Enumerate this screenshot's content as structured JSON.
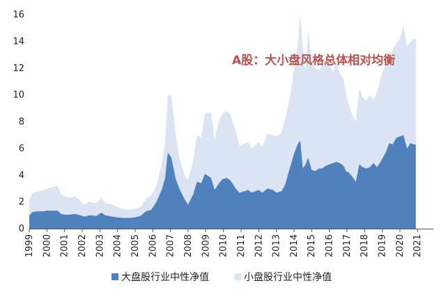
{
  "chart_data": {
    "type": "area",
    "annotation": "A股：大小盘风格总体相对均衡",
    "ylim": [
      0,
      16
    ],
    "y_ticks": [
      0,
      2,
      4,
      6,
      8,
      10,
      12,
      14,
      16
    ],
    "x_ticks": [
      "1999",
      "2000",
      "2001",
      "2002",
      "2003",
      "2004",
      "2005",
      "2006",
      "2007",
      "2008",
      "2009",
      "2010",
      "2011",
      "2012",
      "2013",
      "2014",
      "2015",
      "2016",
      "2017",
      "2018",
      "2019",
      "2020",
      "2021"
    ],
    "xlim": [
      1999.0,
      2021.9
    ],
    "grid": false,
    "legend_position": "bottom",
    "series": [
      {
        "name": "小盘股行业中性净值",
        "color": "#dbe4f2",
        "points": [
          [
            1999.0,
            2.2
          ],
          [
            1999.2,
            2.7
          ],
          [
            1999.5,
            2.8
          ],
          [
            1999.8,
            2.9
          ],
          [
            2000.0,
            3.0
          ],
          [
            2000.3,
            3.1
          ],
          [
            2000.6,
            3.2
          ],
          [
            2000.8,
            2.6
          ],
          [
            2001.0,
            2.4
          ],
          [
            2001.3,
            2.3
          ],
          [
            2001.6,
            2.4
          ],
          [
            2001.9,
            2.1
          ],
          [
            2002.1,
            1.8
          ],
          [
            2002.4,
            2.0
          ],
          [
            2002.8,
            1.9
          ],
          [
            2003.1,
            2.3
          ],
          [
            2003.3,
            1.9
          ],
          [
            2003.7,
            1.8
          ],
          [
            2004.0,
            1.6
          ],
          [
            2004.3,
            1.5
          ],
          [
            2004.6,
            1.4
          ],
          [
            2005.0,
            1.5
          ],
          [
            2005.3,
            1.6
          ],
          [
            2005.6,
            2.2
          ],
          [
            2005.9,
            2.5
          ],
          [
            2006.2,
            3.2
          ],
          [
            2006.5,
            4.8
          ],
          [
            2006.7,
            6.5
          ],
          [
            2006.85,
            10.0
          ],
          [
            2007.05,
            9.9
          ],
          [
            2007.3,
            7.0
          ],
          [
            2007.5,
            5.3
          ],
          [
            2007.8,
            4.0
          ],
          [
            2008.0,
            3.6
          ],
          [
            2008.3,
            5.2
          ],
          [
            2008.5,
            7.0
          ],
          [
            2008.75,
            6.8
          ],
          [
            2008.95,
            8.6
          ],
          [
            2009.3,
            8.7
          ],
          [
            2009.5,
            6.7
          ],
          [
            2009.75,
            8.0
          ],
          [
            2009.95,
            8.6
          ],
          [
            2010.2,
            8.8
          ],
          [
            2010.4,
            8.5
          ],
          [
            2010.7,
            7.3
          ],
          [
            2010.9,
            6.2
          ],
          [
            2011.2,
            6.4
          ],
          [
            2011.4,
            6.5
          ],
          [
            2011.6,
            6.0
          ],
          [
            2011.8,
            6.2
          ],
          [
            2012.0,
            6.5
          ],
          [
            2012.2,
            6.1
          ],
          [
            2012.5,
            7.1
          ],
          [
            2012.8,
            7.0
          ],
          [
            2013.0,
            6.9
          ],
          [
            2013.3,
            7.2
          ],
          [
            2013.5,
            8.2
          ],
          [
            2013.8,
            10.0
          ],
          [
            2014.0,
            12.0
          ],
          [
            2014.2,
            13.6
          ],
          [
            2014.35,
            16.1
          ],
          [
            2014.5,
            13.5
          ],
          [
            2014.65,
            11.8
          ],
          [
            2014.8,
            14.8
          ],
          [
            2015.0,
            12.5
          ],
          [
            2015.2,
            12.0
          ],
          [
            2015.4,
            11.9
          ],
          [
            2015.6,
            12.1
          ],
          [
            2015.8,
            12.7
          ],
          [
            2016.0,
            12.3
          ],
          [
            2016.2,
            11.7
          ],
          [
            2016.4,
            12.4
          ],
          [
            2016.6,
            11.6
          ],
          [
            2016.8,
            11.2
          ],
          [
            2016.95,
            10.1
          ],
          [
            2017.1,
            9.3
          ],
          [
            2017.3,
            8.5
          ],
          [
            2017.5,
            8.0
          ],
          [
            2017.7,
            10.5
          ],
          [
            2017.9,
            9.8
          ],
          [
            2018.1,
            9.6
          ],
          [
            2018.3,
            10.0
          ],
          [
            2018.5,
            9.6
          ],
          [
            2018.7,
            10.2
          ],
          [
            2018.9,
            11.3
          ],
          [
            2019.2,
            12.3
          ],
          [
            2019.4,
            12.8
          ],
          [
            2019.6,
            13.4
          ],
          [
            2019.8,
            13.9
          ],
          [
            2020.0,
            14.2
          ],
          [
            2020.2,
            15.2
          ],
          [
            2020.4,
            13.6
          ],
          [
            2020.6,
            14.0
          ],
          [
            2020.8,
            14.2
          ],
          [
            2020.9,
            14.2
          ]
        ]
      },
      {
        "name": "大盘股行业中性净值",
        "color": "#4f81bd",
        "points": [
          [
            1999.0,
            1.0
          ],
          [
            1999.2,
            1.25
          ],
          [
            1999.5,
            1.3
          ],
          [
            1999.8,
            1.3
          ],
          [
            2000.0,
            1.35
          ],
          [
            2000.3,
            1.35
          ],
          [
            2000.6,
            1.35
          ],
          [
            2000.8,
            1.1
          ],
          [
            2001.0,
            1.05
          ],
          [
            2001.3,
            1.05
          ],
          [
            2001.6,
            1.1
          ],
          [
            2001.9,
            1.0
          ],
          [
            2002.1,
            0.9
          ],
          [
            2002.4,
            1.0
          ],
          [
            2002.8,
            0.95
          ],
          [
            2003.1,
            1.2
          ],
          [
            2003.3,
            1.0
          ],
          [
            2003.7,
            0.9
          ],
          [
            2004.0,
            0.85
          ],
          [
            2004.3,
            0.8
          ],
          [
            2004.6,
            0.8
          ],
          [
            2005.0,
            0.85
          ],
          [
            2005.3,
            0.95
          ],
          [
            2005.6,
            1.3
          ],
          [
            2005.9,
            1.4
          ],
          [
            2006.2,
            2.0
          ],
          [
            2006.5,
            2.9
          ],
          [
            2006.7,
            3.8
          ],
          [
            2006.85,
            5.7
          ],
          [
            2007.05,
            5.3
          ],
          [
            2007.3,
            3.7
          ],
          [
            2007.5,
            3.0
          ],
          [
            2007.8,
            2.2
          ],
          [
            2008.0,
            1.8
          ],
          [
            2008.3,
            2.6
          ],
          [
            2008.5,
            3.5
          ],
          [
            2008.75,
            3.4
          ],
          [
            2008.95,
            4.1
          ],
          [
            2009.3,
            3.8
          ],
          [
            2009.5,
            2.9
          ],
          [
            2009.75,
            3.4
          ],
          [
            2009.95,
            3.7
          ],
          [
            2010.2,
            3.8
          ],
          [
            2010.4,
            3.6
          ],
          [
            2010.7,
            3.0
          ],
          [
            2010.9,
            2.7
          ],
          [
            2011.2,
            2.8
          ],
          [
            2011.4,
            2.9
          ],
          [
            2011.6,
            2.7
          ],
          [
            2011.8,
            2.8
          ],
          [
            2012.0,
            2.9
          ],
          [
            2012.2,
            2.7
          ],
          [
            2012.5,
            3.0
          ],
          [
            2012.8,
            2.9
          ],
          [
            2013.0,
            2.7
          ],
          [
            2013.3,
            2.8
          ],
          [
            2013.5,
            3.3
          ],
          [
            2013.8,
            4.7
          ],
          [
            2014.0,
            5.6
          ],
          [
            2014.2,
            6.3
          ],
          [
            2014.35,
            6.6
          ],
          [
            2014.5,
            4.5
          ],
          [
            2014.65,
            4.8
          ],
          [
            2014.8,
            5.3
          ],
          [
            2015.0,
            4.4
          ],
          [
            2015.2,
            4.3
          ],
          [
            2015.4,
            4.5
          ],
          [
            2015.6,
            4.5
          ],
          [
            2015.8,
            4.7
          ],
          [
            2016.0,
            4.8
          ],
          [
            2016.2,
            4.9
          ],
          [
            2016.4,
            5.0
          ],
          [
            2016.6,
            4.9
          ],
          [
            2016.8,
            4.7
          ],
          [
            2016.95,
            4.3
          ],
          [
            2017.1,
            4.2
          ],
          [
            2017.3,
            3.9
          ],
          [
            2017.5,
            3.5
          ],
          [
            2017.7,
            4.8
          ],
          [
            2017.9,
            4.6
          ],
          [
            2018.1,
            4.5
          ],
          [
            2018.3,
            4.6
          ],
          [
            2018.5,
            4.9
          ],
          [
            2018.7,
            4.6
          ],
          [
            2018.9,
            5.0
          ],
          [
            2019.2,
            5.7
          ],
          [
            2019.4,
            6.4
          ],
          [
            2019.6,
            6.3
          ],
          [
            2019.8,
            6.8
          ],
          [
            2020.0,
            6.9
          ],
          [
            2020.2,
            7.0
          ],
          [
            2020.4,
            6.0
          ],
          [
            2020.6,
            6.4
          ],
          [
            2020.8,
            6.3
          ],
          [
            2020.9,
            6.3
          ]
        ]
      }
    ]
  }
}
